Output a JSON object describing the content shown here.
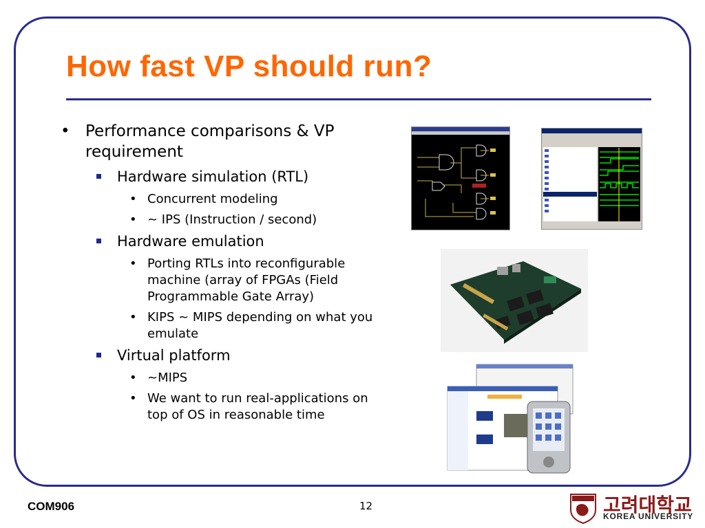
{
  "slide": {
    "title": "How fast VP should run?",
    "footer_left": "COM906",
    "page_number": "12",
    "logo_korean": "고려대학교",
    "logo_english": "KOREA UNIVERSITY",
    "logo_seal_text": "KOREA UNIVERSITY"
  },
  "bullets": {
    "main": "Performance comparisons & VP requirement",
    "rtl": {
      "label": "Hardware simulation (RTL)",
      "items": [
        "Concurrent modeling",
        "~ IPS (Instruction / second)"
      ]
    },
    "emulation": {
      "label": "Hardware emulation",
      "items": [
        "Porting RTLs into reconfigurable machine (array of FPGAs (Field Programmable Gate Array)",
        "KIPS ~ MIPS depending on what you emulate"
      ]
    },
    "vp": {
      "label": "Virtual platform",
      "items": [
        "~MIPS",
        "We want to run real-applications on top of OS in reasonable time"
      ]
    }
  },
  "colors": {
    "title": "#ff6600",
    "frame": "#2a2a8c",
    "rule": "#2a2a8c",
    "logo": "#8b1a1a"
  },
  "images": [
    "schematic-screenshot",
    "waveform-screenshot",
    "fpga-board-photo",
    "virtual-platform-collage"
  ]
}
